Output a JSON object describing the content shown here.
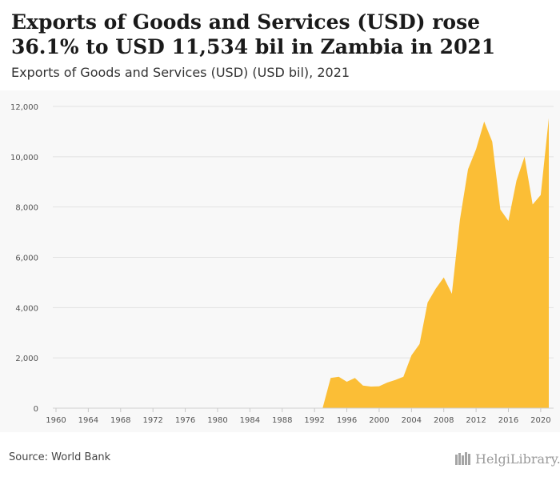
{
  "header": {
    "title": "Exports of Goods and Services (USD) rose 36.1% to USD 11,534 bil in Zambia in 2021",
    "subtitle": "Exports of Goods and Services (USD) (USD bil), 2021"
  },
  "footer": {
    "source": "Source: World Bank",
    "brand": "HelgiLibrary."
  },
  "colors": {
    "area": "#fbbe36",
    "grid": "#e2e2e2",
    "plot_background": "#f8f8f8",
    "axis_text": "#555555"
  },
  "chart_data": {
    "type": "area",
    "title": "Exports of Goods and Services (USD) rose 36.1% to USD 11,534 bil in Zambia in 2021",
    "subtitle": "Exports of Goods and Services (USD) (USD bil), 2021",
    "xlabel": "",
    "ylabel": "",
    "xlim": [
      1960,
      2021
    ],
    "ylim": [
      0,
      12000
    ],
    "yticks": [
      0,
      2000,
      4000,
      6000,
      8000,
      10000,
      12000
    ],
    "ytick_labels": [
      "0",
      "2,000",
      "4,000",
      "6,000",
      "8,000",
      "10,000",
      "12,000"
    ],
    "xticks": [
      1960,
      1964,
      1968,
      1972,
      1976,
      1980,
      1984,
      1988,
      1992,
      1996,
      2000,
      2004,
      2008,
      2012,
      2016,
      2020
    ],
    "grid": true,
    "x": [
      1960,
      1961,
      1962,
      1963,
      1964,
      1965,
      1966,
      1967,
      1968,
      1969,
      1970,
      1971,
      1972,
      1973,
      1974,
      1975,
      1976,
      1977,
      1978,
      1979,
      1980,
      1981,
      1982,
      1983,
      1984,
      1985,
      1986,
      1987,
      1988,
      1989,
      1990,
      1991,
      1992,
      1993,
      1994,
      1995,
      1996,
      1997,
      1998,
      1999,
      2000,
      2001,
      2002,
      2003,
      2004,
      2005,
      2006,
      2007,
      2008,
      2009,
      2010,
      2011,
      2012,
      2013,
      2014,
      2015,
      2016,
      2017,
      2018,
      2019,
      2020,
      2021
    ],
    "series": [
      {
        "values": [
          0,
          0,
          0,
          0,
          0,
          0,
          0,
          0,
          0,
          0,
          0,
          0,
          0,
          0,
          0,
          0,
          0,
          0,
          0,
          0,
          0,
          0,
          0,
          0,
          0,
          0,
          0,
          0,
          0,
          0,
          0,
          0,
          0,
          0,
          1200,
          1250,
          1050,
          1200,
          900,
          860,
          870,
          1020,
          1120,
          1250,
          2100,
          2550,
          4200,
          4750,
          5200,
          4550,
          7500,
          9500,
          10300,
          11400,
          10600,
          7900,
          7450,
          9050,
          10000,
          8100,
          8480,
          11534
        ]
      }
    ]
  }
}
